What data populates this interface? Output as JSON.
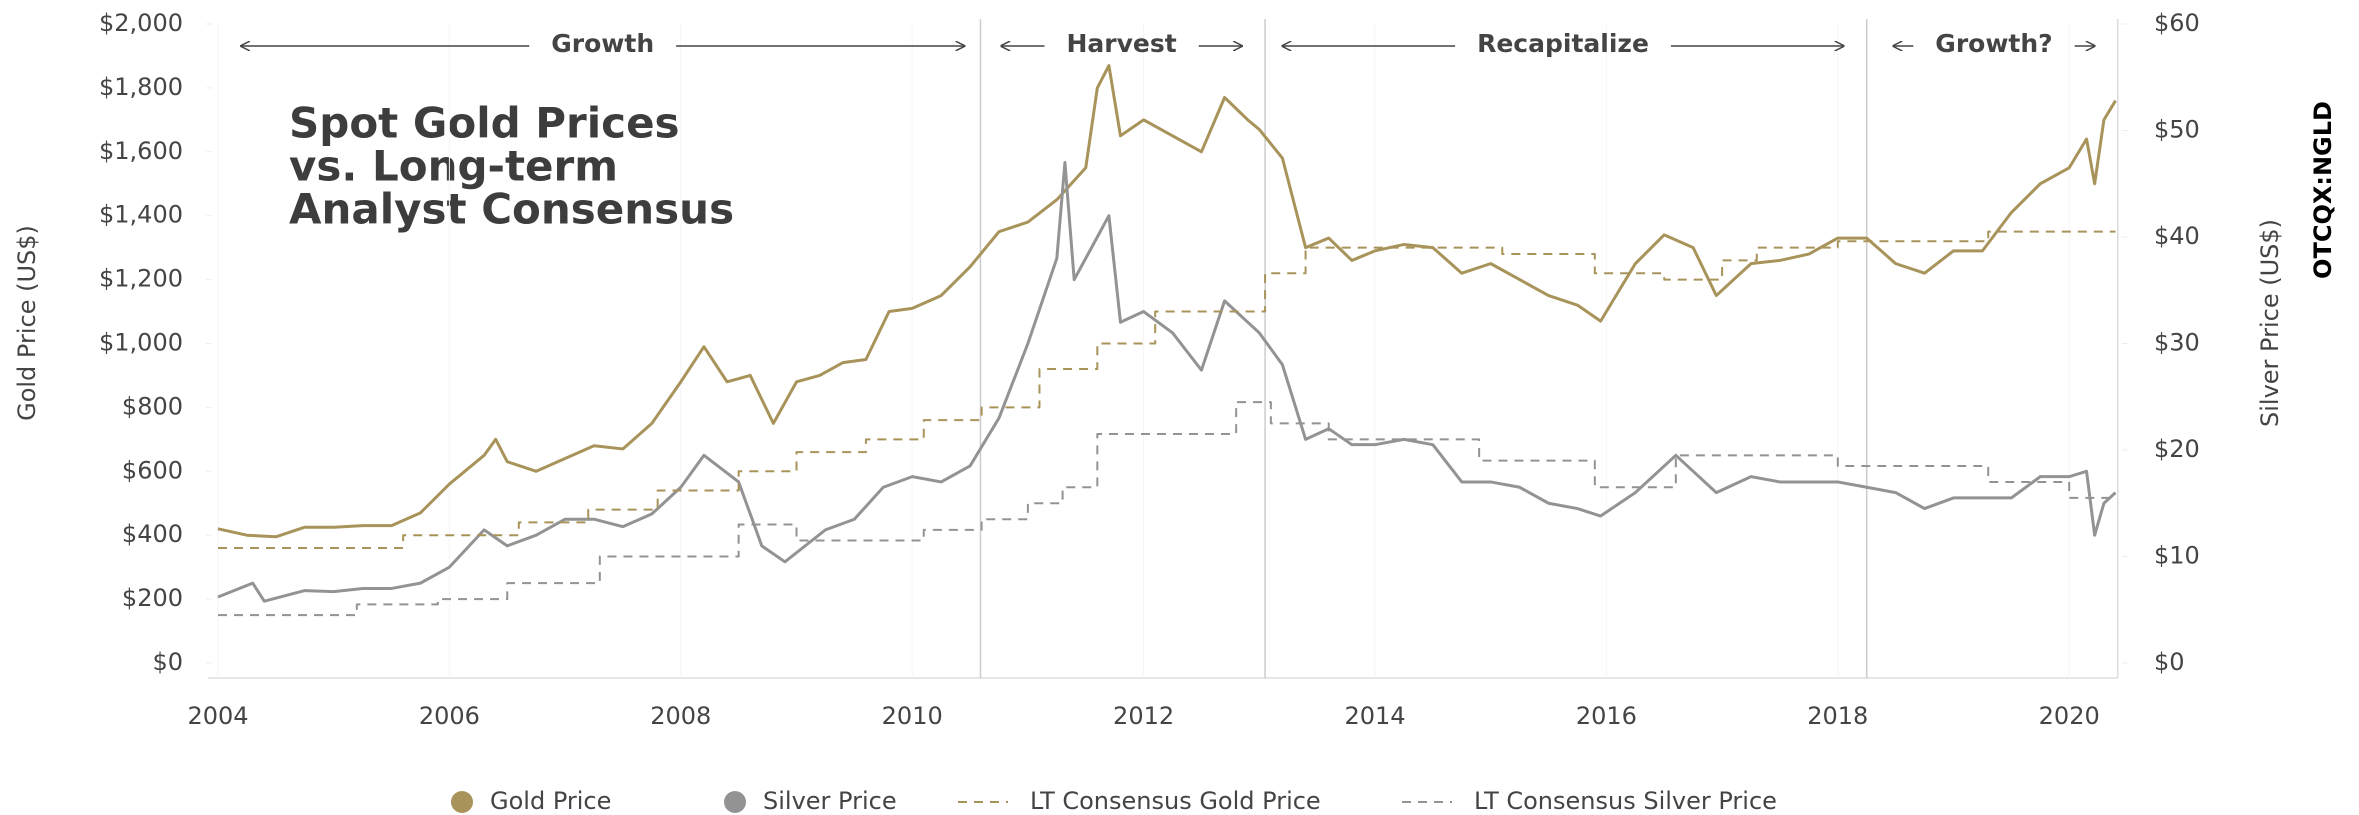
{
  "chart_data": {
    "type": "line",
    "title_lines": [
      "Spot Gold Prices",
      "vs. Long-term",
      "Analyst Consensus"
    ],
    "side_label": "OTCQX:NGLD",
    "y_label": "Gold Price (US$)",
    "y2_label": "Silver Price (US$)",
    "xlim": [
      2004,
      2020.42
    ],
    "xticks": [
      2004,
      2006,
      2008,
      2010,
      2012,
      2014,
      2016,
      2018,
      2020
    ],
    "ylim": [
      0,
      2000
    ],
    "yticks": [
      {
        "value": 0,
        "label": "$0"
      },
      {
        "value": 200,
        "label": "$200"
      },
      {
        "value": 400,
        "label": "$400"
      },
      {
        "value": 600,
        "label": "$600"
      },
      {
        "value": 800,
        "label": "$800"
      },
      {
        "value": 1000,
        "label": "$1,000"
      },
      {
        "value": 1200,
        "label": "$1,200"
      },
      {
        "value": 1400,
        "label": "$1,400"
      },
      {
        "value": 1600,
        "label": "$1,600"
      },
      {
        "value": 1800,
        "label": "$1,800"
      },
      {
        "value": 2000,
        "label": "$2,000"
      }
    ],
    "y2lim": [
      0,
      60
    ],
    "y2ticks": [
      {
        "value": 0,
        "label": "$0"
      },
      {
        "value": 10,
        "label": "$10"
      },
      {
        "value": 20,
        "label": "$20"
      },
      {
        "value": 30,
        "label": "$30"
      },
      {
        "value": 40,
        "label": "$40"
      },
      {
        "value": 50,
        "label": "$50"
      },
      {
        "value": 60,
        "label": "$60"
      }
    ],
    "dividers": [
      2010.59,
      2013.05,
      2018.25
    ],
    "phases": [
      {
        "label": "Growth",
        "start": 2004.2,
        "end": 2010.45
      },
      {
        "label": "Harvest",
        "start": 2010.77,
        "end": 2012.85
      },
      {
        "label": "Recapitalize",
        "start": 2013.2,
        "end": 2018.05
      },
      {
        "label": "Growth?",
        "start": 2018.48,
        "end": 2020.22
      }
    ],
    "series": [
      {
        "name": "Gold Price",
        "color": "#a8935a",
        "axis": "y",
        "dash": false,
        "x": [
          2004.0,
          2004.25,
          2004.5,
          2004.75,
          2005.0,
          2005.25,
          2005.5,
          2005.75,
          2006.0,
          2006.3,
          2006.4,
          2006.5,
          2006.75,
          2007.0,
          2007.25,
          2007.5,
          2007.75,
          2008.0,
          2008.2,
          2008.4,
          2008.6,
          2008.8,
          2009.0,
          2009.2,
          2009.4,
          2009.6,
          2009.8,
          2010.0,
          2010.25,
          2010.5,
          2010.75,
          2011.0,
          2011.25,
          2011.5,
          2011.6,
          2011.7,
          2011.8,
          2012.0,
          2012.25,
          2012.5,
          2012.7,
          2012.9,
          2013.0,
          2013.2,
          2013.4,
          2013.6,
          2013.8,
          2014.0,
          2014.25,
          2014.5,
          2014.75,
          2015.0,
          2015.25,
          2015.5,
          2015.75,
          2015.95,
          2016.25,
          2016.5,
          2016.75,
          2016.95,
          2017.25,
          2017.5,
          2017.75,
          2018.0,
          2018.25,
          2018.5,
          2018.75,
          2019.0,
          2019.25,
          2019.5,
          2019.75,
          2020.0,
          2020.15,
          2020.22,
          2020.3,
          2020.4
        ],
        "values": [
          420,
          400,
          395,
          425,
          425,
          430,
          430,
          470,
          560,
          650,
          700,
          630,
          600,
          640,
          680,
          670,
          750,
          880,
          990,
          880,
          900,
          750,
          880,
          900,
          940,
          950,
          1100,
          1110,
          1150,
          1240,
          1350,
          1380,
          1450,
          1550,
          1800,
          1870,
          1650,
          1700,
          1650,
          1600,
          1770,
          1700,
          1670,
          1580,
          1300,
          1330,
          1260,
          1290,
          1310,
          1300,
          1220,
          1250,
          1200,
          1150,
          1120,
          1070,
          1250,
          1340,
          1300,
          1150,
          1250,
          1260,
          1280,
          1330,
          1330,
          1250,
          1220,
          1290,
          1290,
          1410,
          1500,
          1550,
          1640,
          1500,
          1700,
          1760
        ]
      },
      {
        "name": "Silver Price",
        "color": "#939393",
        "axis": "y2",
        "dash": false,
        "x": [
          2004.0,
          2004.3,
          2004.4,
          2004.75,
          2005.0,
          2005.25,
          2005.5,
          2005.75,
          2006.0,
          2006.3,
          2006.5,
          2006.75,
          2007.0,
          2007.25,
          2007.5,
          2007.75,
          2008.0,
          2008.2,
          2008.5,
          2008.7,
          2008.9,
          2009.25,
          2009.5,
          2009.75,
          2010.0,
          2010.25,
          2010.5,
          2010.75,
          2011.0,
          2011.25,
          2011.32,
          2011.4,
          2011.6,
          2011.7,
          2011.8,
          2012.0,
          2012.25,
          2012.5,
          2012.7,
          2012.9,
          2013.0,
          2013.2,
          2013.4,
          2013.6,
          2013.8,
          2014.0,
          2014.25,
          2014.5,
          2014.75,
          2015.0,
          2015.25,
          2015.5,
          2015.75,
          2015.95,
          2016.25,
          2016.6,
          2016.75,
          2016.95,
          2017.25,
          2017.5,
          2017.75,
          2018.0,
          2018.25,
          2018.5,
          2018.75,
          2019.0,
          2019.25,
          2019.5,
          2019.75,
          2020.0,
          2020.15,
          2020.22,
          2020.3,
          2020.4
        ],
        "values": [
          6.2,
          7.5,
          5.8,
          6.8,
          6.7,
          7.0,
          7.0,
          7.5,
          9.0,
          12.5,
          11,
          12,
          13.5,
          13.5,
          12.8,
          14,
          16.5,
          19.5,
          17,
          11,
          9.5,
          12.5,
          13.5,
          16.5,
          17.5,
          17,
          18.5,
          23,
          30,
          38,
          47,
          36,
          40,
          42,
          32,
          33,
          31,
          27.5,
          34,
          32,
          31,
          28,
          21,
          22,
          20.5,
          20.5,
          21,
          20.5,
          17,
          17,
          16.5,
          15,
          14.5,
          13.8,
          16,
          19.5,
          18,
          16,
          17.5,
          17,
          17,
          17,
          16.5,
          16,
          14.5,
          15.5,
          15.5,
          15.5,
          17.5,
          17.5,
          18,
          12,
          15,
          16
        ]
      },
      {
        "name": "LT Consensus Gold Price",
        "color": "#a8935a",
        "axis": "y",
        "dash": true,
        "x": [
          2004.0,
          2005.6,
          2006.6,
          2007.2,
          2007.8,
          2008.5,
          2009.0,
          2009.6,
          2010.1,
          2010.6,
          2011.1,
          2011.6,
          2012.1,
          2013.05,
          2013.4,
          2015.1,
          2015.9,
          2016.5,
          2017.0,
          2017.3,
          2018.0,
          2019.3,
          2020.4
        ],
        "values": [
          360,
          400,
          440,
          480,
          540,
          600,
          660,
          700,
          760,
          800,
          920,
          1000,
          1100,
          1220,
          1300,
          1280,
          1220,
          1200,
          1260,
          1300,
          1320,
          1350,
          1350
        ]
      },
      {
        "name": "LT Consensus Silver Price",
        "color": "#939393",
        "axis": "y2",
        "dash": true,
        "x": [
          2004.0,
          2005.2,
          2005.9,
          2006.5,
          2007.3,
          2008.5,
          2009.0,
          2010.1,
          2010.6,
          2011.0,
          2011.3,
          2011.6,
          2012.8,
          2013.1,
          2013.6,
          2014.9,
          2015.9,
          2016.6,
          2018.0,
          2019.3,
          2020.0,
          2020.4
        ],
        "values": [
          4.5,
          5.5,
          6.0,
          7.5,
          10,
          13,
          11.5,
          12.5,
          13.5,
          15,
          16.5,
          21.5,
          24.5,
          22.5,
          21,
          19,
          16.5,
          19.5,
          18.5,
          17,
          15.5,
          15.5
        ]
      }
    ]
  }
}
